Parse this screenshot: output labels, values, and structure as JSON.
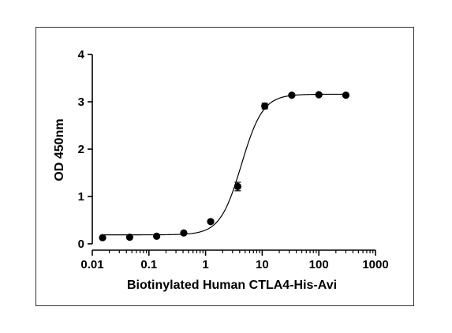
{
  "chart_data": {
    "type": "scatter",
    "title": "",
    "xlabel": "Biotinylated Human CTLA4-His-Avi",
    "ylabel": "OD 450nm",
    "x_scale": "log",
    "xlim": [
      0.01,
      1000
    ],
    "ylim": [
      0,
      4
    ],
    "x_ticks": [
      0.01,
      0.1,
      1,
      10,
      100,
      1000
    ],
    "x_tick_labels": [
      "0.01",
      "0.1",
      "1",
      "10",
      "100",
      "1000"
    ],
    "y_ticks": [
      0,
      1,
      2,
      3,
      4
    ],
    "y_tick_labels": [
      "0",
      "1",
      "2",
      "3",
      "4"
    ],
    "grid": false,
    "legend": "none",
    "series": [
      {
        "points": [
          {
            "x": 0.0152,
            "y": 0.13,
            "err": 0.02
          },
          {
            "x": 0.0457,
            "y": 0.14,
            "err": 0.02
          },
          {
            "x": 0.137,
            "y": 0.16,
            "err": 0.02
          },
          {
            "x": 0.412,
            "y": 0.23,
            "err": 0.02
          },
          {
            "x": 1.23,
            "y": 0.47,
            "err": 0.03
          },
          {
            "x": 3.7,
            "y": 1.21,
            "err": 0.09
          },
          {
            "x": 11.1,
            "y": 2.91,
            "err": 0.06
          },
          {
            "x": 33.3,
            "y": 3.14,
            "err": 0.03
          },
          {
            "x": 100,
            "y": 3.15,
            "err": 0.02
          },
          {
            "x": 300,
            "y": 3.14,
            "err": 0.02
          }
        ],
        "fit": {
          "bottom": 0.19,
          "top": 3.16,
          "ec50": 4.3,
          "hill": 2.3,
          "x_range": [
            0.015,
            300
          ]
        }
      }
    ],
    "colors": {
      "points": "#000000",
      "axes": "#000000",
      "frame": "#333333"
    }
  }
}
